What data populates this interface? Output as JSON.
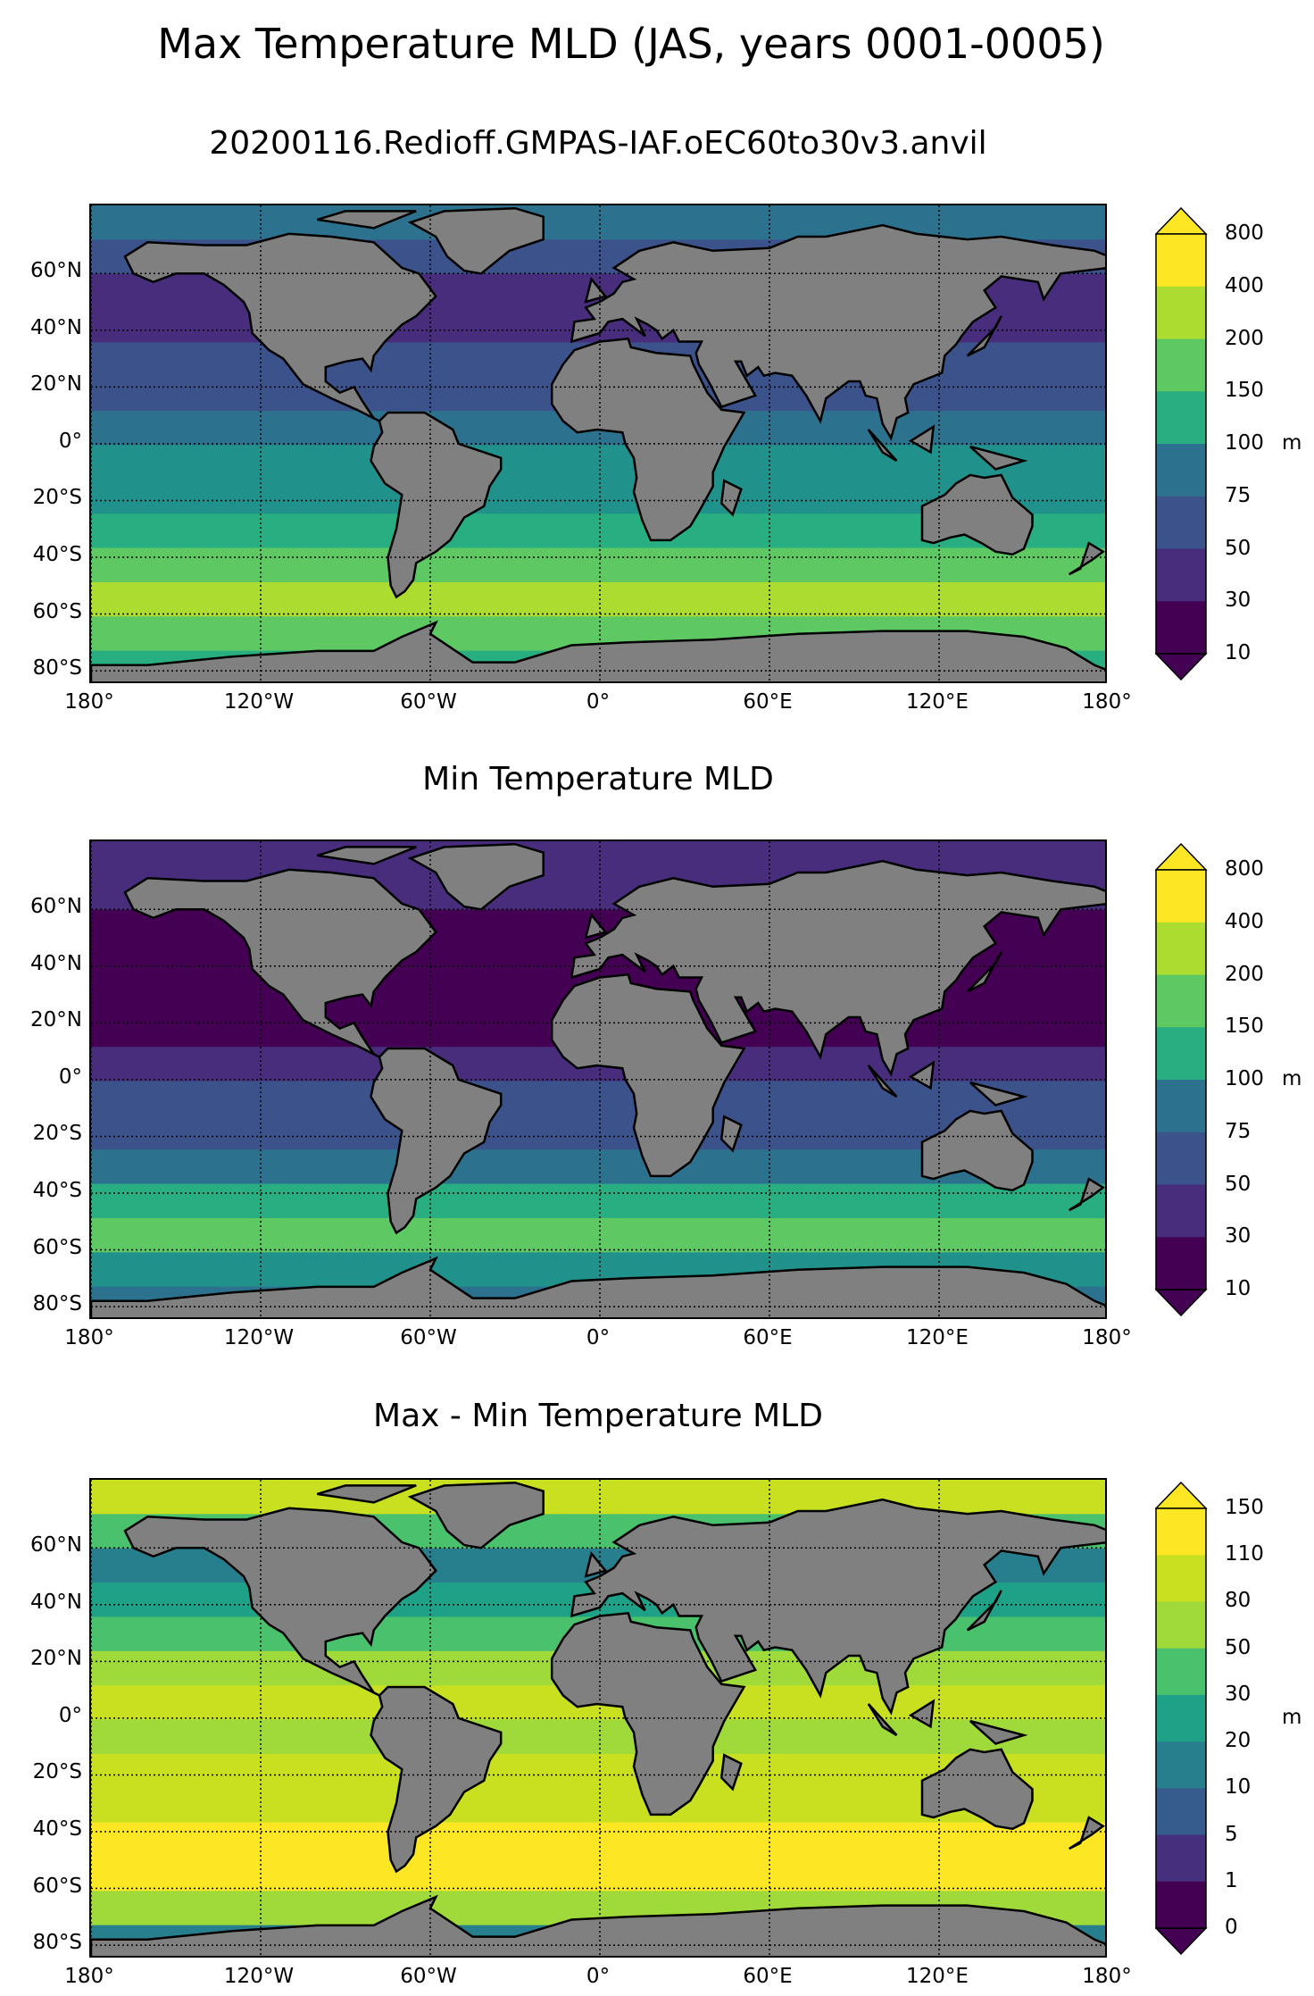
{
  "suptitle": "Max Temperature MLD (JAS, years 0001-0005)",
  "palette": {
    "land": "#808080",
    "viridis9": [
      "#440154",
      "#472d7b",
      "#3b528b",
      "#2c728e",
      "#21918c",
      "#28ae80",
      "#5ec962",
      "#addc30",
      "#fde725"
    ],
    "viridis_diff": [
      "#440154",
      "#46307e",
      "#365c8d",
      "#277f8e",
      "#1fa187",
      "#4ac16d",
      "#9fda3a",
      "#c8e020",
      "#fde725"
    ]
  },
  "axes": {
    "lat_ticks": [
      "60°N",
      "40°N",
      "20°N",
      "0°",
      "20°S",
      "40°S",
      "60°S",
      "80°S"
    ],
    "lon_ticks": [
      "180°",
      "120°W",
      "60°W",
      "0°",
      "60°E",
      "120°E",
      "180°"
    ]
  },
  "panels": [
    {
      "title": "20200116.Redioff.GMPAS-IAF.oEC60to30v3.anvil",
      "colorbar_ticks": [
        "800",
        "400",
        "200",
        "150",
        "100",
        "75",
        "50",
        "30",
        "10"
      ],
      "colorbar_unit": "m",
      "bands": [
        3,
        2,
        1,
        1,
        2,
        2,
        3,
        4,
        4,
        5,
        6,
        7,
        6,
        5
      ]
    },
    {
      "title": "Min Temperature MLD",
      "colorbar_ticks": [
        "800",
        "400",
        "200",
        "150",
        "100",
        "75",
        "50",
        "30",
        "10"
      ],
      "colorbar_unit": "m",
      "bands": [
        1,
        1,
        0,
        0,
        0,
        0,
        1,
        2,
        2,
        3,
        5,
        6,
        4,
        3
      ]
    },
    {
      "title": "Max - Min Temperature MLD",
      "colorbar_ticks": [
        "150",
        "110",
        "80",
        "50",
        "30",
        "20",
        "10",
        "5",
        "1",
        "0"
      ],
      "colorbar_unit": "m",
      "bands": [
        7,
        5,
        3,
        4,
        5,
        6,
        7,
        6,
        7,
        7,
        8,
        8,
        6,
        3
      ]
    }
  ]
}
